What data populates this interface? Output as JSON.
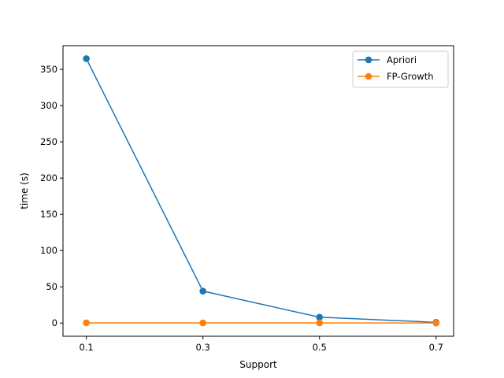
{
  "chart_data": {
    "type": "line",
    "title": "",
    "xlabel": "Support",
    "ylabel": "time (s)",
    "x": [
      0.1,
      0.3,
      0.5,
      0.7
    ],
    "x_ticks": [
      "0.1",
      "0.3",
      "0.5",
      "0.7"
    ],
    "xlim": [
      0.06,
      0.73
    ],
    "y_ticks": [
      0,
      50,
      100,
      150,
      200,
      250,
      300,
      350
    ],
    "ylim": [
      -18.2,
      382.7
    ],
    "grid": false,
    "legend_position": "top-right",
    "series": [
      {
        "name": "Apriori",
        "color": "#1f77b4",
        "values": [
          364.8,
          44.1,
          8.1,
          1.0
        ]
      },
      {
        "name": "FP-Growth",
        "color": "#ff7f0e",
        "values": [
          0.3,
          0.2,
          0.2,
          0.1
        ]
      }
    ]
  }
}
